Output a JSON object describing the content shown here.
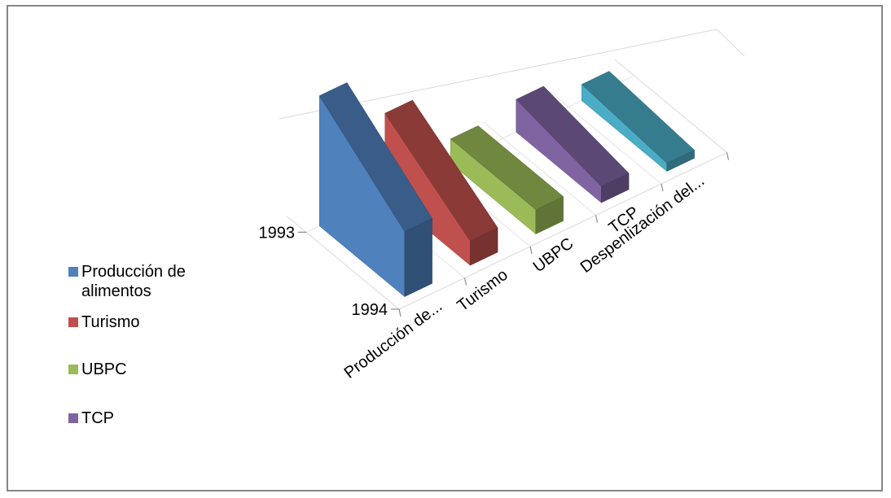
{
  "chart_data": {
    "type": "bar",
    "variant": "3d-column",
    "categories": [
      "Producción de...",
      "Turismo",
      "UBPC",
      "TCP",
      "Despenlización del..."
    ],
    "depth_categories": [
      "1993",
      "1994"
    ],
    "series": [
      {
        "name": "Producción de alimentos",
        "color": "#4F81BD",
        "values": {
          "1993": 8,
          "1994": 4
        }
      },
      {
        "name": "Turismo",
        "color": "#C0504D",
        "values": {
          "1993": 5,
          "1994": 1.5
        }
      },
      {
        "name": "UBPC",
        "color": "#9BBB59",
        "values": {
          "1993": 1.5,
          "1994": 1.5
        }
      },
      {
        "name": "TCP",
        "color": "#8064A2",
        "values": {
          "1993": 2,
          "1994": 1
        }
      },
      {
        "name": "Despenlización del...",
        "color": "#4BACC6",
        "values": {
          "1993": 1,
          "1994": 0.5
        }
      }
    ],
    "legend": {
      "position": "left",
      "items": [
        "Producción de alimentos",
        "Turismo",
        "UBPC",
        "TCP"
      ]
    },
    "title": "",
    "xlabel": "",
    "ylabel": "",
    "grid": true
  }
}
